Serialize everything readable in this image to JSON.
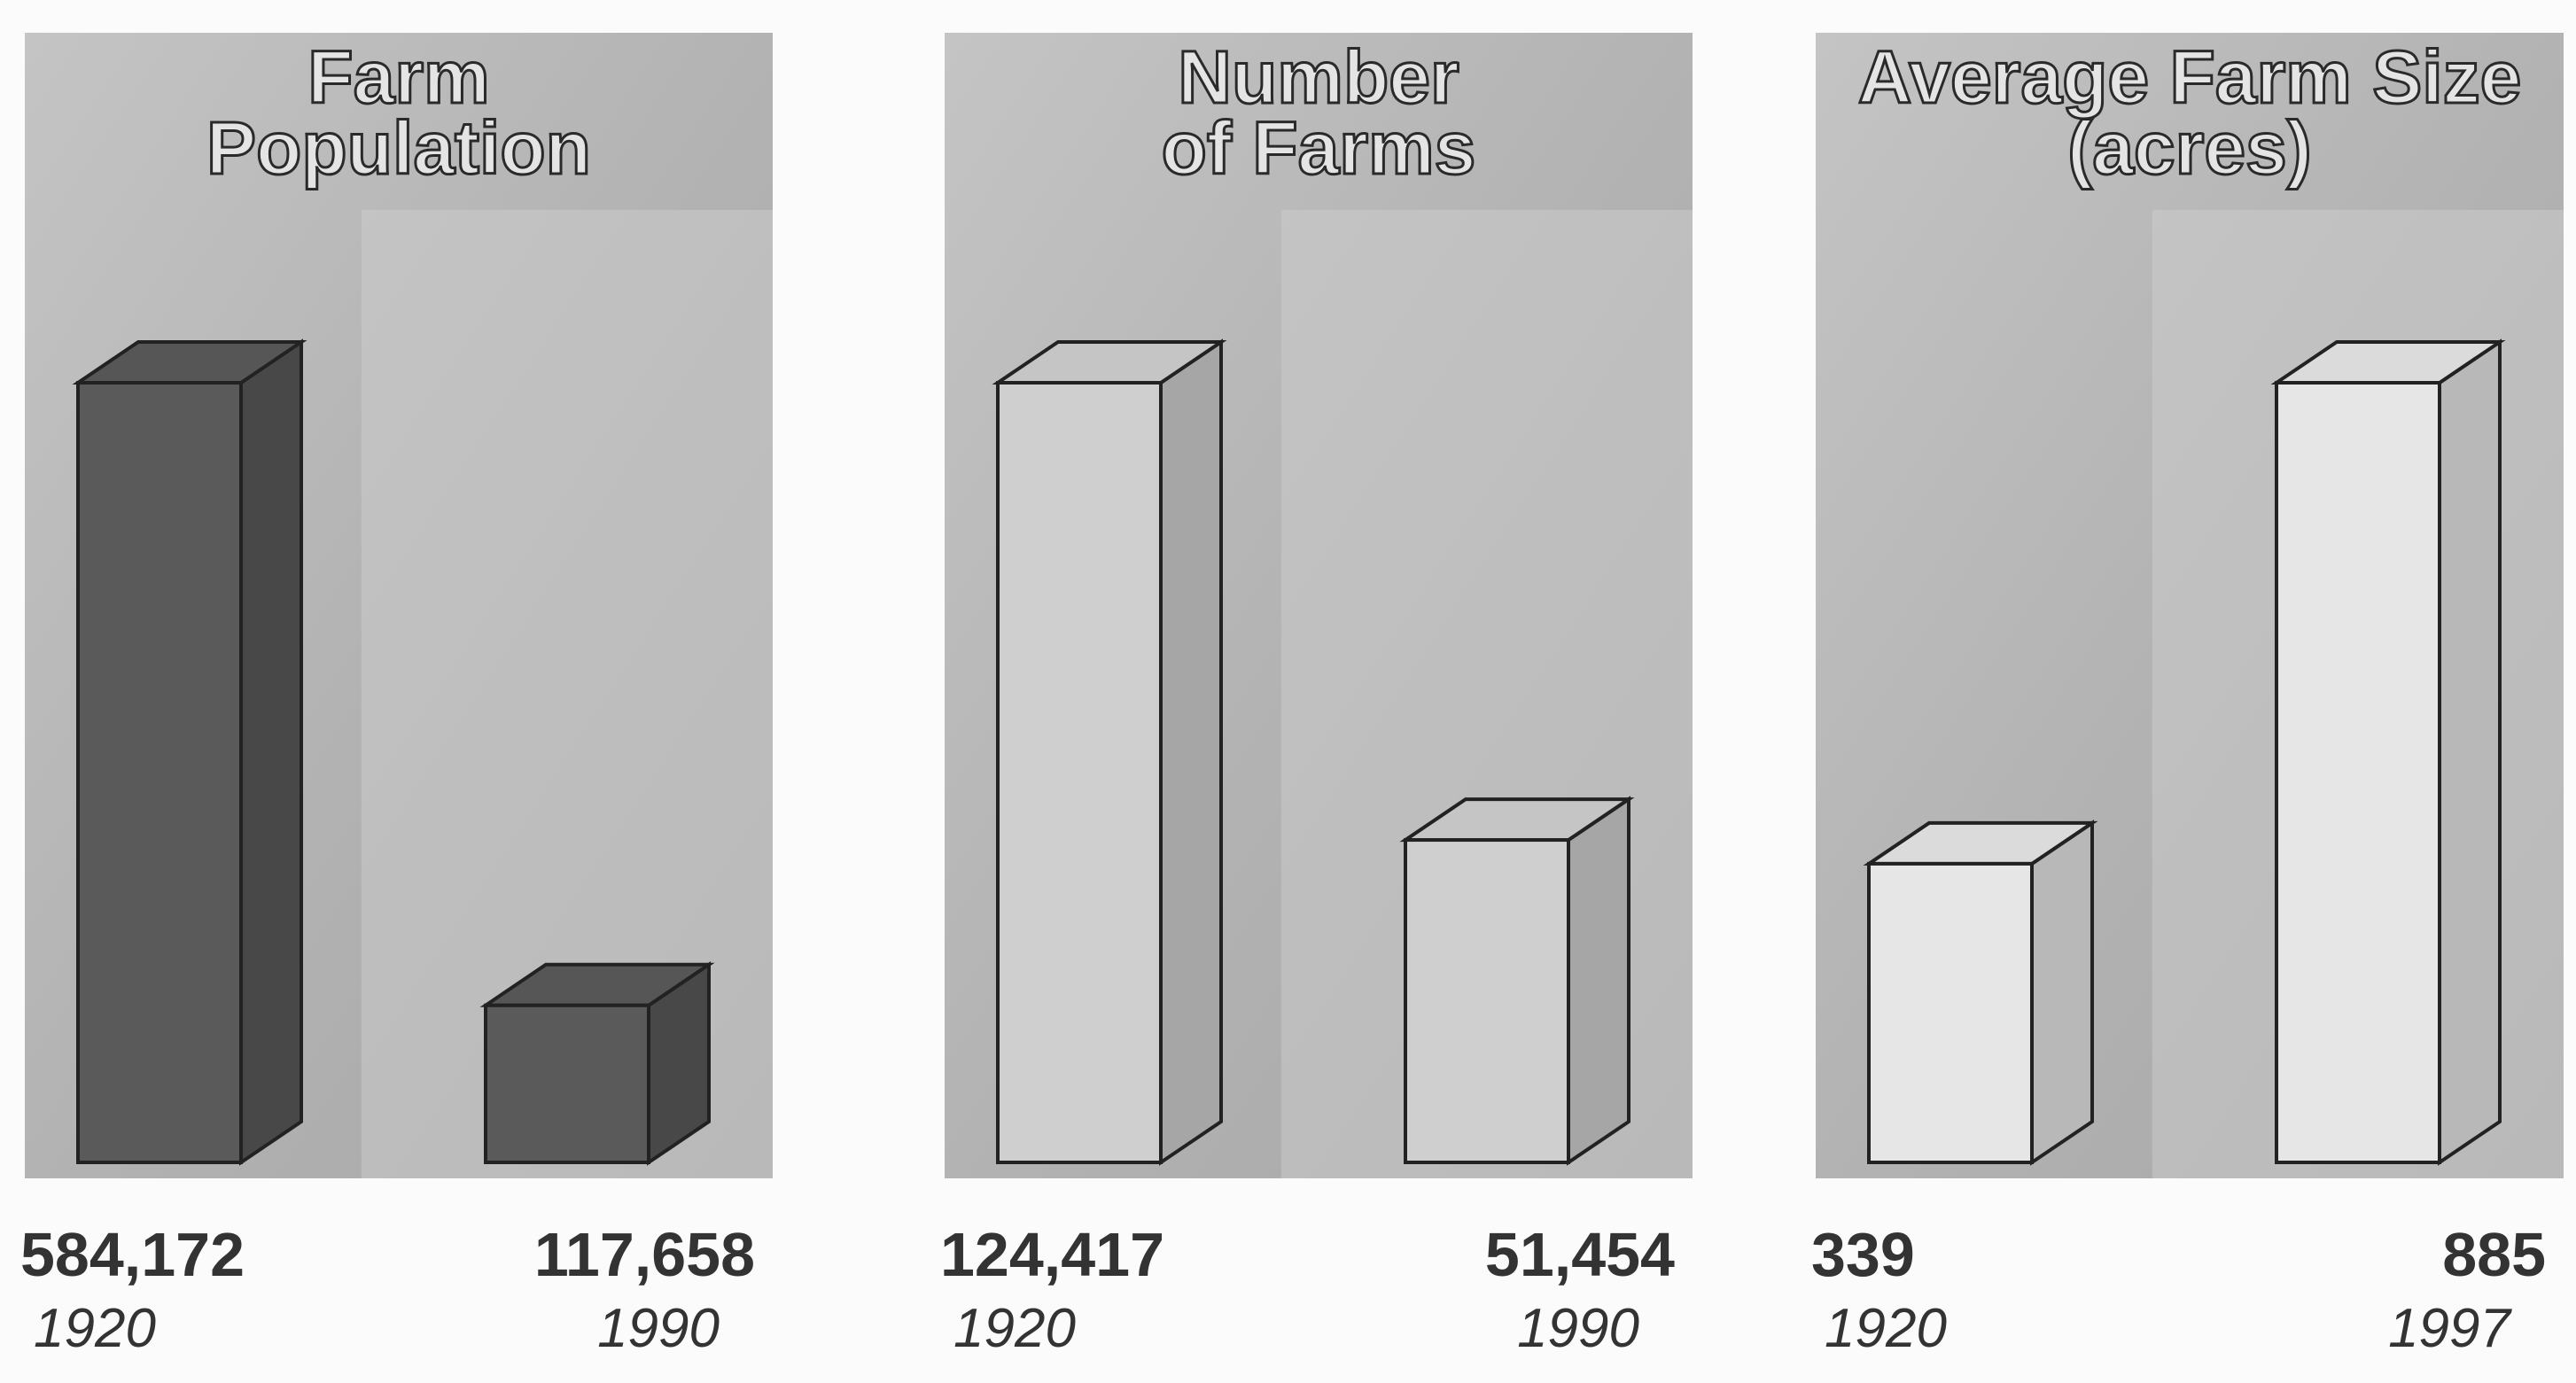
{
  "chart_data": [
    {
      "type": "bar",
      "title": "Farm\nPopulation",
      "categories": [
        "1920",
        "1990"
      ],
      "values": [
        584172,
        117658
      ],
      "value_labels": [
        "584,172",
        "117,658"
      ],
      "color": "#5a5a5a"
    },
    {
      "type": "bar",
      "title": "Number\nof Farms",
      "categories": [
        "1920",
        "1990"
      ],
      "values": [
        124417,
        51454
      ],
      "value_labels": [
        "124,417",
        "51,454"
      ],
      "color": "#cfcfcf"
    },
    {
      "type": "bar",
      "title": "Average Farm Size\n(acres)",
      "categories": [
        "1920",
        "1997"
      ],
      "values": [
        339,
        885
      ],
      "value_labels": [
        "339",
        "885"
      ],
      "color": "#e6e6e6"
    }
  ]
}
